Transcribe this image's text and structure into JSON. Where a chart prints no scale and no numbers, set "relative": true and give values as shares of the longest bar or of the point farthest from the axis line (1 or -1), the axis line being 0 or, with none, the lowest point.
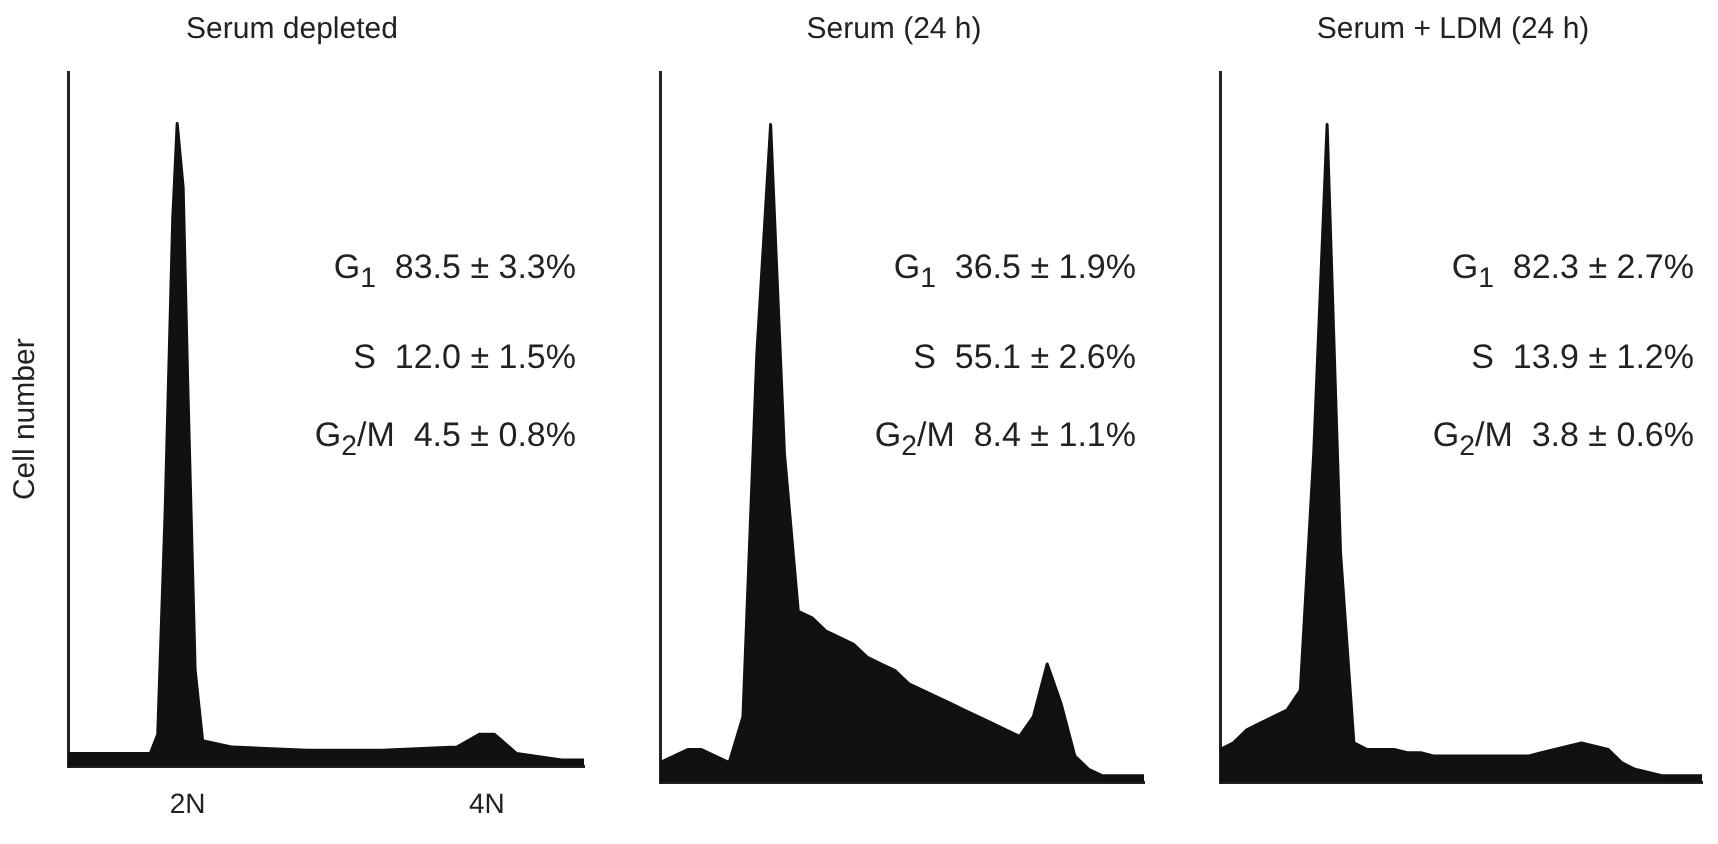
{
  "chart_data": [
    {
      "type": "area",
      "title": "Serum depleted",
      "ylabel": "Cell number",
      "relative": true,
      "xlim": [
        1.2,
        4.65
      ],
      "xticks": [
        {
          "value": 2,
          "label": "2N"
        },
        {
          "value": 4,
          "label": "4N"
        }
      ],
      "x": [
        1.2,
        1.5,
        1.75,
        1.8,
        1.85,
        1.9,
        1.93,
        1.97,
        2.0,
        2.05,
        2.1,
        2.3,
        2.8,
        3.3,
        3.8,
        3.95,
        4.05,
        4.2,
        4.5,
        4.65
      ],
      "series": [
        {
          "color": "#111111",
          "values": [
            0.02,
            0.02,
            0.02,
            0.05,
            0.4,
            0.85,
            1.0,
            0.9,
            0.6,
            0.15,
            0.04,
            0.03,
            0.025,
            0.025,
            0.03,
            0.05,
            0.05,
            0.02,
            0.01,
            0.01
          ]
        }
      ],
      "annotations": [
        "G$_{1}$  83.5 ± 3.3%",
        "S  12.0 ± 1.5%",
        "G$_{2}$/M  4.5 ± 0.8%"
      ]
    },
    {
      "type": "area",
      "title": "Serum (24 h)",
      "relative": true,
      "categories": [
        null,
        null,
        null,
        null,
        null,
        null,
        null,
        null,
        null,
        null,
        null,
        null,
        null,
        null,
        null,
        null,
        null,
        null,
        null,
        null,
        null,
        null,
        null,
        null,
        null,
        null,
        null,
        null,
        null,
        null,
        null,
        null,
        null,
        null,
        null,
        null
      ],
      "series": [
        {
          "color": "#111111",
          "values": [
            0.03,
            0.04,
            0.05,
            0.05,
            0.04,
            0.03,
            0.1,
            0.65,
            1.0,
            0.5,
            0.26,
            0.25,
            0.23,
            0.22,
            0.21,
            0.19,
            0.18,
            0.17,
            0.15,
            0.14,
            0.13,
            0.12,
            0.11,
            0.1,
            0.09,
            0.08,
            0.07,
            0.1,
            0.18,
            0.12,
            0.04,
            0.02,
            0.01,
            0.01,
            0.01,
            0.01
          ]
        }
      ],
      "annotations": [
        "G$_{1}$  36.5 ± 1.9%",
        "S  55.1 ± 2.6%",
        "G$_{2}$/M  8.4 ± 1.1%"
      ]
    },
    {
      "type": "area",
      "title": "Serum + LDM (24 h)",
      "relative": true,
      "categories": [
        null,
        null,
        null,
        null,
        null,
        null,
        null,
        null,
        null,
        null,
        null,
        null,
        null,
        null,
        null,
        null,
        null,
        null,
        null,
        null,
        null,
        null,
        null,
        null,
        null,
        null,
        null,
        null,
        null,
        null,
        null,
        null,
        null,
        null,
        null,
        null,
        null
      ],
      "series": [
        {
          "color": "#111111",
          "values": [
            0.05,
            0.06,
            0.08,
            0.09,
            0.1,
            0.11,
            0.14,
            0.5,
            1.0,
            0.35,
            0.06,
            0.05,
            0.05,
            0.05,
            0.045,
            0.045,
            0.04,
            0.04,
            0.04,
            0.04,
            0.04,
            0.04,
            0.04,
            0.04,
            0.045,
            0.05,
            0.055,
            0.06,
            0.055,
            0.05,
            0.03,
            0.02,
            0.015,
            0.01,
            0.01,
            0.01,
            0.01
          ]
        }
      ],
      "annotations": [
        "G$_{1}$  82.3 ± 2.7%",
        "S  13.9 ± 1.2%",
        "G$_{2}$/M  3.8 ± 0.6%"
      ]
    }
  ]
}
